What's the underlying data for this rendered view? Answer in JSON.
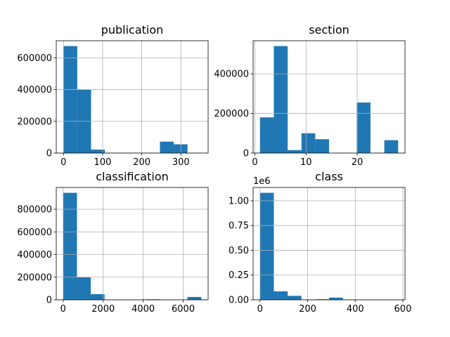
{
  "chart_data": [
    {
      "type": "bar",
      "title": "publication",
      "xlabel": "",
      "ylabel": "",
      "xlim": [
        -18.5,
        369.5
      ],
      "ylim": [
        0,
        707700
      ],
      "xticks": [
        0,
        100,
        200,
        300
      ],
      "yticks": [
        0,
        200000,
        400000,
        600000
      ],
      "ytick_labels": [
        "0",
        "200000",
        "400000",
        "600000"
      ],
      "y_offset_label": "",
      "grid": true,
      "bin_edges": [
        0,
        35.2,
        70.4,
        105.6,
        140.8,
        176,
        211.2,
        246.4,
        281.6,
        316.8,
        352
      ],
      "values": [
        674000,
        400000,
        22000,
        0,
        0,
        0,
        0,
        72000,
        55000,
        0
      ],
      "color": "#1f77b4"
    },
    {
      "type": "bar",
      "title": "section",
      "xlabel": "",
      "ylabel": "",
      "xlim": [
        -0.35,
        29.35
      ],
      "ylim": [
        0,
        567000
      ],
      "xticks": [
        0,
        10,
        20
      ],
      "yticks": [
        0,
        200000,
        400000
      ],
      "ytick_labels": [
        "0",
        "200000",
        "400000"
      ],
      "y_offset_label": "",
      "grid": true,
      "bin_edges": [
        1,
        3.7,
        6.4,
        9.1,
        11.8,
        14.5,
        17.2,
        19.9,
        22.6,
        25.3,
        28
      ],
      "values": [
        180000,
        540000,
        15000,
        100000,
        70000,
        0,
        0,
        255000,
        0,
        65000
      ],
      "color": "#1f77b4"
    },
    {
      "type": "bar",
      "title": "classification",
      "xlabel": "",
      "ylabel": "",
      "xlim": [
        -345,
        7245
      ],
      "ylim": [
        0,
        992250
      ],
      "xticks": [
        0,
        2000,
        4000,
        6000
      ],
      "yticks": [
        0,
        200000,
        400000,
        600000,
        800000
      ],
      "ytick_labels": [
        "0",
        "200000",
        "400000",
        "600000",
        "800000"
      ],
      "y_offset_label": "",
      "grid": true,
      "bin_edges": [
        0,
        690,
        1380,
        2070,
        2760,
        3450,
        4140,
        4830,
        5520,
        6210,
        6900
      ],
      "values": [
        945000,
        200000,
        50000,
        0,
        0,
        0,
        5000,
        0,
        0,
        25000
      ],
      "color": "#1f77b4"
    },
    {
      "type": "bar",
      "title": "class",
      "xlabel": "",
      "ylabel": "",
      "xlim": [
        -29,
        609
      ],
      "ylim": [
        0,
        1134000
      ],
      "xticks": [
        0,
        200,
        400,
        600
      ],
      "yticks": [
        0,
        250000,
        500000,
        750000,
        1000000
      ],
      "ytick_labels": [
        "0.00",
        "0.25",
        "0.50",
        "0.75",
        "1.00"
      ],
      "y_offset_label": "1e6",
      "grid": true,
      "bin_edges": [
        0,
        58,
        116,
        174,
        232,
        290,
        348,
        406,
        464,
        522,
        580
      ],
      "values": [
        1080000,
        85000,
        40000,
        0,
        6000,
        22000,
        0,
        0,
        0,
        0
      ],
      "color": "#1f77b4"
    }
  ]
}
